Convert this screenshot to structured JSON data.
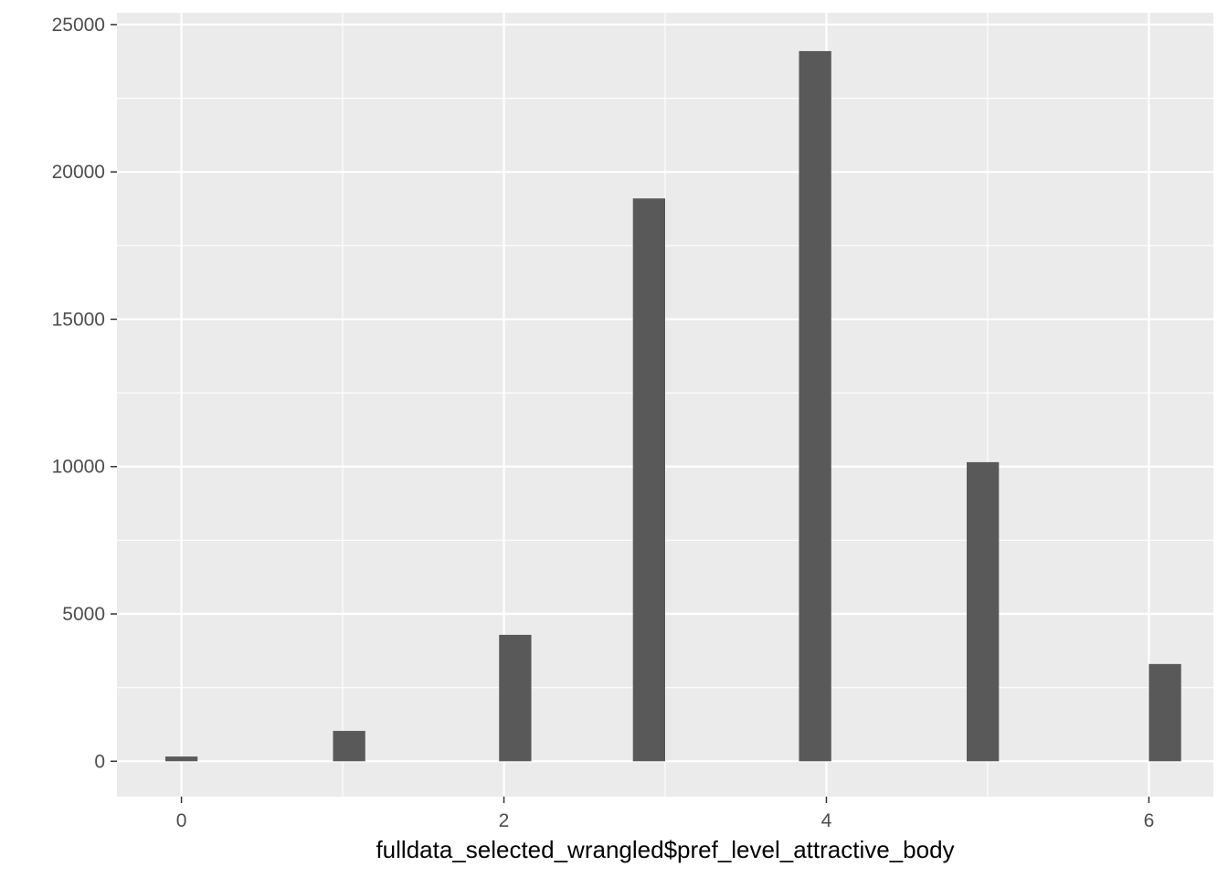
{
  "chart_data": {
    "type": "bar",
    "xlabel": "fulldata_selected_wrangled$pref_level_attractive_body",
    "ylabel": "",
    "title": "",
    "x": [
      0,
      1.04,
      2.07,
      2.9,
      3.93,
      4.97,
      6.1
    ],
    "values": [
      160,
      1030,
      4290,
      19100,
      24100,
      10150,
      3300
    ],
    "xlim": [
      -0.4,
      6.4
    ],
    "ylim": [
      -1200,
      25400
    ],
    "bar_width": 0.2,
    "x_ticks": [
      0,
      2,
      4,
      6
    ],
    "x_minor_ticks": [
      1,
      3,
      5
    ],
    "y_ticks": [
      0,
      5000,
      10000,
      15000,
      20000,
      25000
    ],
    "y_minor_ticks": [
      2500,
      7500,
      12500,
      17500,
      22500
    ],
    "x_tick_labels": [
      "0",
      "2",
      "4",
      "6"
    ],
    "y_tick_labels": [
      "0",
      "5000",
      "10000",
      "15000",
      "20000",
      "25000"
    ],
    "grid": true,
    "colors": {
      "panel": "#ebebeb",
      "grid": "#ffffff",
      "bar": "#595959",
      "tick": "#333333"
    }
  }
}
